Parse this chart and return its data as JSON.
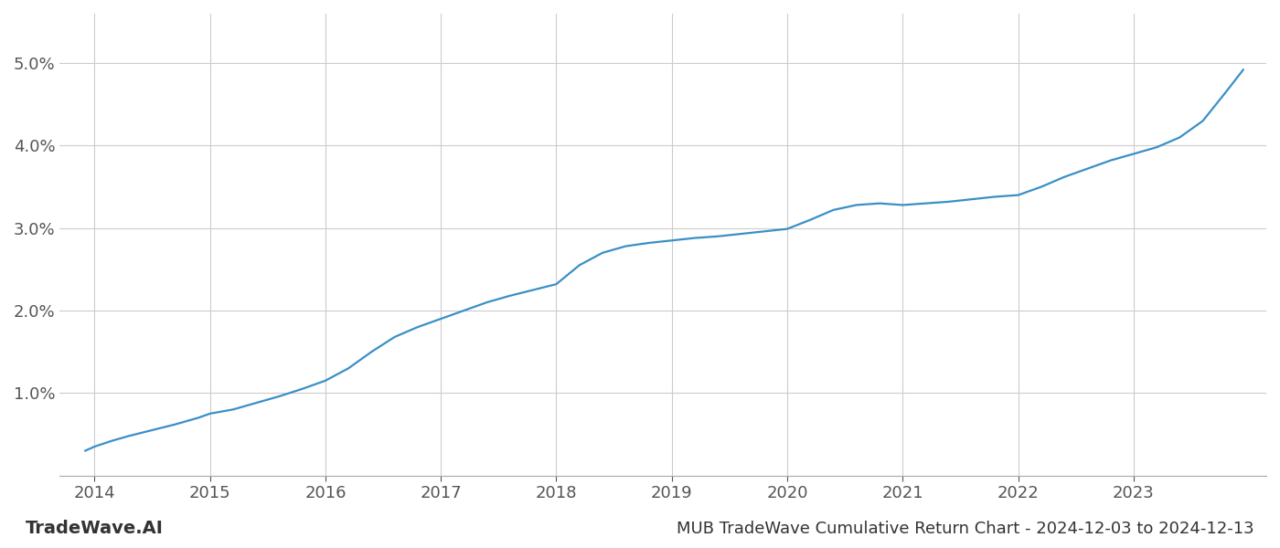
{
  "x_years": [
    2013.92,
    2014.0,
    2014.15,
    2014.3,
    2014.5,
    2014.7,
    2014.9,
    2015.0,
    2015.2,
    2015.4,
    2015.6,
    2015.8,
    2016.0,
    2016.2,
    2016.4,
    2016.6,
    2016.8,
    2017.0,
    2017.2,
    2017.4,
    2017.6,
    2017.8,
    2018.0,
    2018.2,
    2018.4,
    2018.6,
    2018.8,
    2019.0,
    2019.2,
    2019.4,
    2019.6,
    2019.8,
    2020.0,
    2020.2,
    2020.4,
    2020.6,
    2020.8,
    2021.0,
    2021.2,
    2021.4,
    2021.6,
    2021.8,
    2022.0,
    2022.2,
    2022.4,
    2022.6,
    2022.8,
    2023.0,
    2023.2,
    2023.4,
    2023.6,
    2023.8,
    2023.95
  ],
  "y_values": [
    0.3,
    0.35,
    0.42,
    0.48,
    0.55,
    0.62,
    0.7,
    0.75,
    0.8,
    0.88,
    0.96,
    1.05,
    1.15,
    1.3,
    1.5,
    1.68,
    1.8,
    1.9,
    2.0,
    2.1,
    2.18,
    2.25,
    2.32,
    2.55,
    2.7,
    2.78,
    2.82,
    2.85,
    2.88,
    2.9,
    2.93,
    2.96,
    2.99,
    3.1,
    3.22,
    3.28,
    3.3,
    3.28,
    3.3,
    3.32,
    3.35,
    3.38,
    3.4,
    3.5,
    3.62,
    3.72,
    3.82,
    3.9,
    3.98,
    4.1,
    4.3,
    4.65,
    4.92
  ],
  "line_color": "#3a8fc7",
  "line_width": 1.6,
  "bg_color": "#ffffff",
  "grid_color": "#cccccc",
  "title": "MUB TradeWave Cumulative Return Chart - 2024-12-03 to 2024-12-13",
  "watermark": "TradeWave.AI",
  "xlim": [
    2013.7,
    2024.15
  ],
  "ylim": [
    0.0,
    5.6
  ],
  "xticks": [
    2014,
    2015,
    2016,
    2017,
    2018,
    2019,
    2020,
    2021,
    2022,
    2023
  ],
  "yticks": [
    0.0,
    1.0,
    2.0,
    3.0,
    4.0,
    5.0
  ],
  "ytick_labels": [
    "",
    "1.0%",
    "2.0%",
    "3.0%",
    "4.0%",
    "5.0%"
  ],
  "tick_fontsize": 13,
  "title_fontsize": 13,
  "watermark_fontsize": 14
}
